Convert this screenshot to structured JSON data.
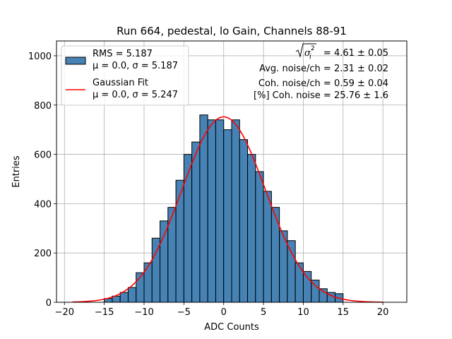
{
  "chart_data": {
    "type": "bar",
    "title": "Run 664, pedestal, lo Gain, Channels 88-91",
    "xlabel": "ADC Counts",
    "ylabel": "Entries",
    "xlim": [
      -21,
      23
    ],
    "ylim": [
      0,
      1060
    ],
    "xticks": [
      -20,
      -15,
      -10,
      -5,
      0,
      5,
      10,
      15,
      20
    ],
    "yticks": [
      0,
      200,
      400,
      600,
      800,
      1000
    ],
    "grid": true,
    "legend_position": "top-left",
    "bin_width": 1,
    "histogram": {
      "name": "RMS = 5.187",
      "name_line2": "μ = 0.0, σ = 5.187",
      "color": "#4682b4",
      "edgecolor": "#000000",
      "bins_left": [
        -15,
        -14,
        -13,
        -12,
        -11,
        -10,
        -9,
        -8,
        -7,
        -6,
        -5,
        -4,
        -3,
        -2,
        -1,
        0,
        1,
        2,
        3,
        4,
        5,
        6,
        7,
        8,
        9,
        10,
        11,
        12,
        13,
        14
      ],
      "values": [
        15,
        25,
        40,
        60,
        120,
        160,
        260,
        330,
        385,
        495,
        600,
        650,
        760,
        740,
        740,
        700,
        740,
        660,
        600,
        530,
        450,
        385,
        290,
        250,
        160,
        125,
        90,
        55,
        40,
        35
      ]
    },
    "fit": {
      "name": "Gaussian Fit",
      "name_line2": "μ = 0.0, σ = 5.247",
      "color": "#ff0000",
      "mu": 0.0,
      "sigma": 5.247,
      "amplitude": 752,
      "x_range": [
        -19,
        20
      ]
    },
    "annotations": {
      "sqrt_sigma_value": "= 4.61 ± 0.05",
      "avg_noise": "Avg. noise/ch = 2.31 ± 0.02",
      "coh_noise": "Coh. noise/ch = 0.59 ± 0.04",
      "pct_coh_noise": "[%] Coh. noise = 25.76 ± 1.6"
    }
  }
}
